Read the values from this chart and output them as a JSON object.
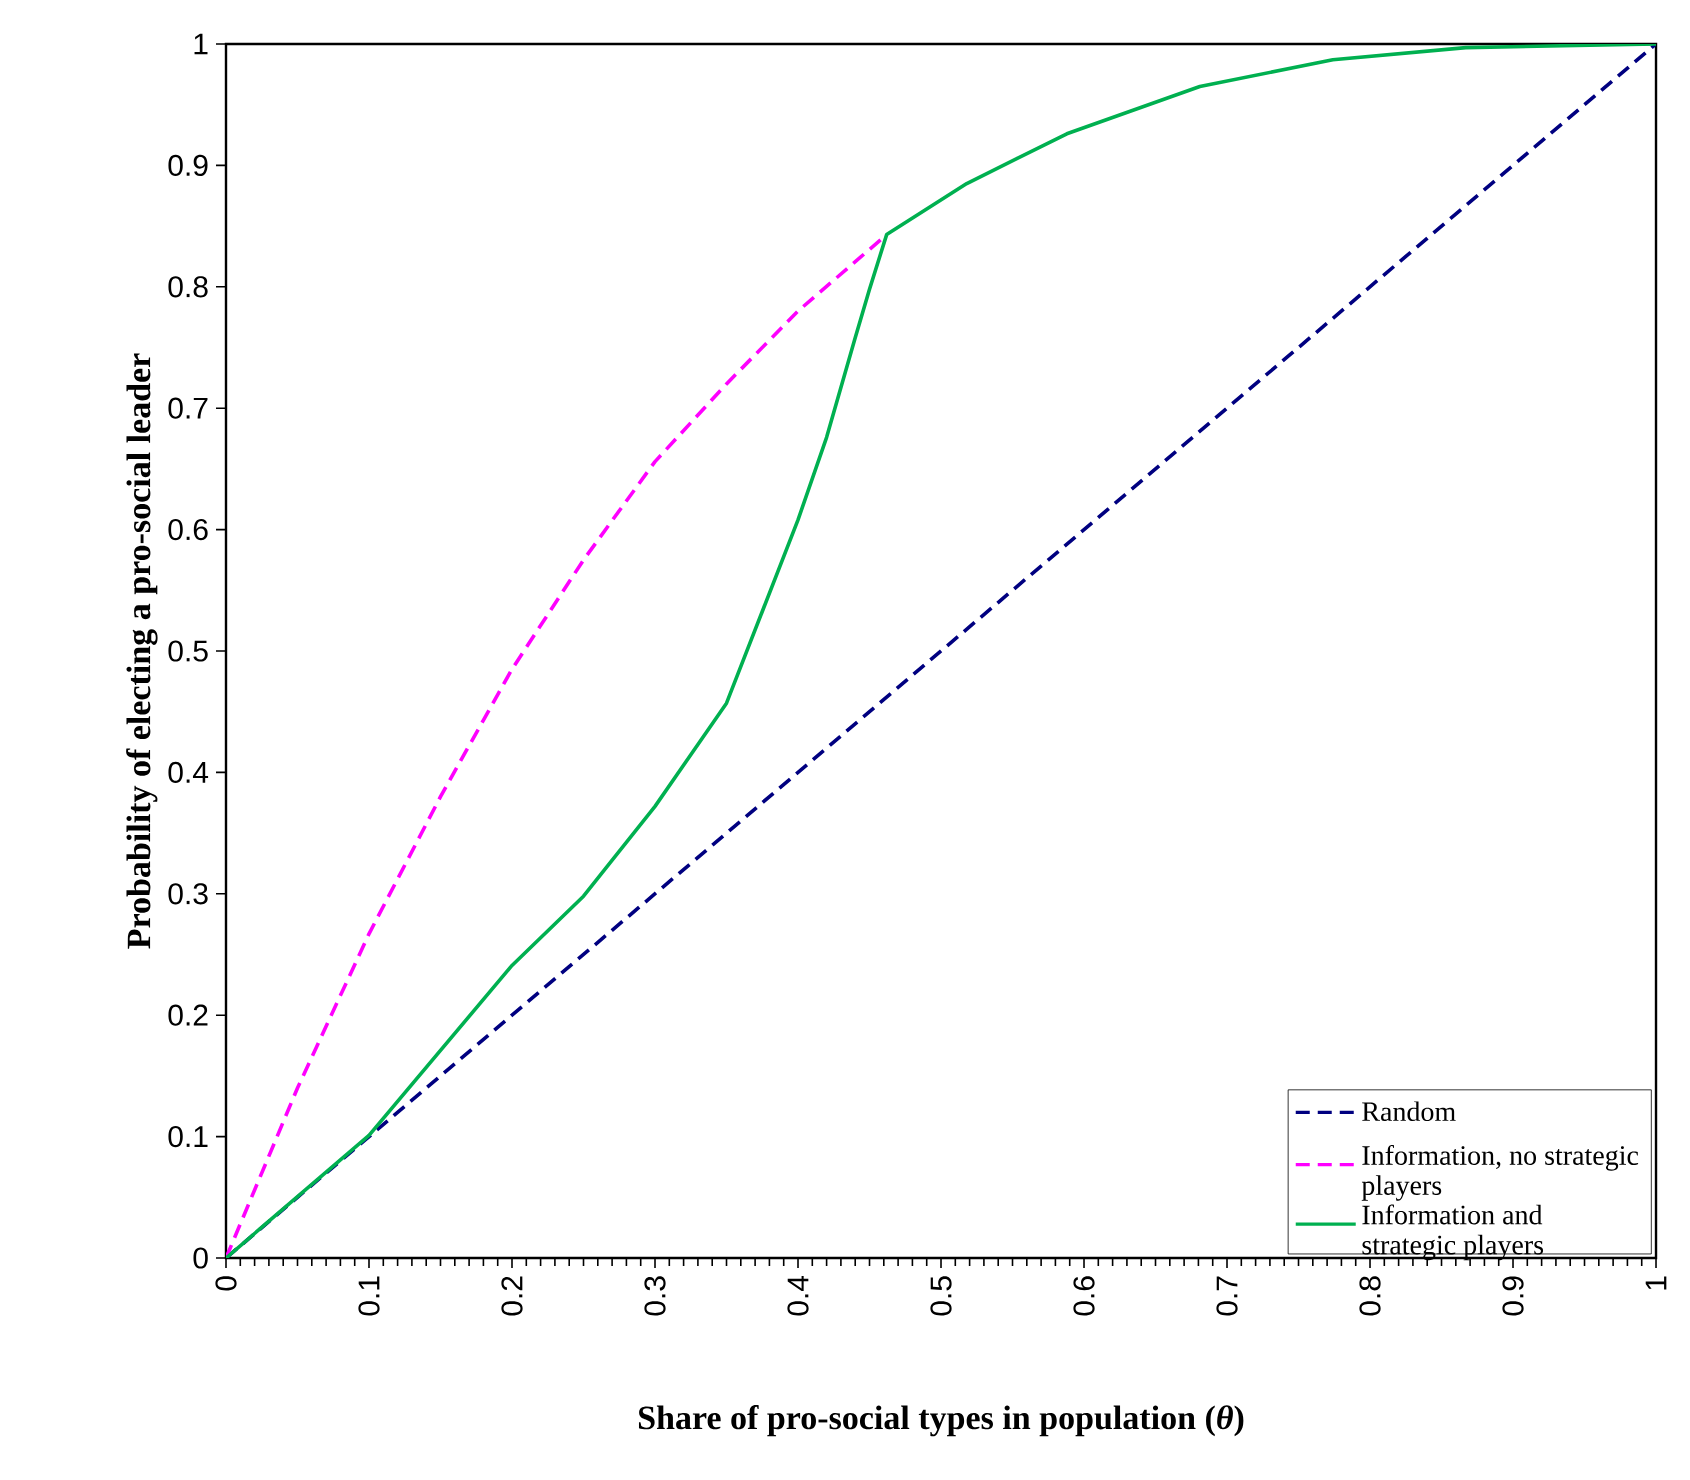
{
  "chart_data": {
    "type": "line",
    "xlabel": "Share of pro-social types in population (*θ*)",
    "ylabel": "Probability of electing a pro-social leader",
    "xlim": [
      0,
      1
    ],
    "ylim": [
      0,
      1
    ],
    "xticks": [
      0,
      0.1,
      0.2,
      0.3,
      0.4,
      0.5,
      0.6,
      0.7,
      0.8,
      0.9,
      1
    ],
    "yticks": [
      0,
      0.1,
      0.2,
      0.3,
      0.4,
      0.5,
      0.6,
      0.7,
      0.8,
      0.9,
      1
    ],
    "grid": false,
    "legend": "bottom right",
    "marker": "none",
    "series": [
      {
        "name": "Random",
        "color": "#000080",
        "line_style": "dashed",
        "x": [
          0,
          1
        ],
        "values": [
          0,
          1
        ]
      },
      {
        "name": "Information, no strategic players",
        "color": "#ff00ff",
        "line_style": "dashed",
        "x": [
          0,
          0.05,
          0.1,
          0.15,
          0.2,
          0.25,
          0.3,
          0.35,
          0.4,
          0.462
        ],
        "values": [
          0,
          0.14,
          0.267,
          0.38,
          0.485,
          0.575,
          0.656,
          0.72,
          0.78,
          0.843
        ]
      },
      {
        "name": "Information and strategic players",
        "color": "#00b050",
        "line_style": "solid",
        "x": [
          0,
          0.1,
          0.2,
          0.25,
          0.3,
          0.35,
          0.4,
          0.42,
          0.44,
          0.45,
          0.462,
          0.518,
          0.588,
          0.681,
          0.774,
          0.867,
          1
        ],
        "values": [
          0,
          0.101,
          0.241,
          0.298,
          0.372,
          0.457,
          0.608,
          0.676,
          0.758,
          0.798,
          0.843,
          0.885,
          0.926,
          0.965,
          0.987,
          0.997,
          1
        ]
      }
    ]
  }
}
